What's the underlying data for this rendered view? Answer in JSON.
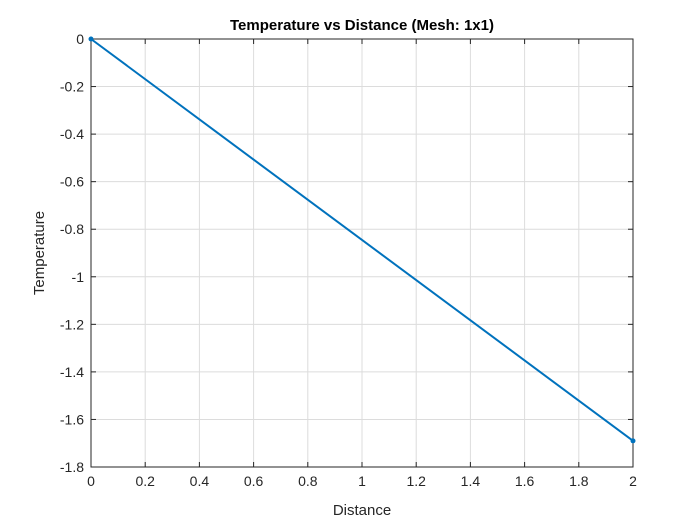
{
  "chart_data": {
    "type": "line",
    "title": "Temperature vs Distance (Mesh: 1x1)",
    "xlabel": "Distance",
    "ylabel": "Temperature",
    "xlim": [
      0,
      2
    ],
    "ylim": [
      -1.8,
      0
    ],
    "xticks": [
      "0",
      "0.2",
      "0.4",
      "0.6",
      "0.8",
      "1",
      "1.2",
      "1.4",
      "1.6",
      "1.8",
      "2"
    ],
    "yticks": [
      "0",
      "-0.2",
      "-0.4",
      "-0.6",
      "-0.8",
      "-1",
      "-1.2",
      "-1.4",
      "-1.6",
      "-1.8"
    ],
    "grid": true,
    "series": [
      {
        "x": [
          0,
          2
        ],
        "y": [
          0,
          -1.69
        ],
        "color": "#0072BD",
        "marker": "dot"
      }
    ]
  }
}
